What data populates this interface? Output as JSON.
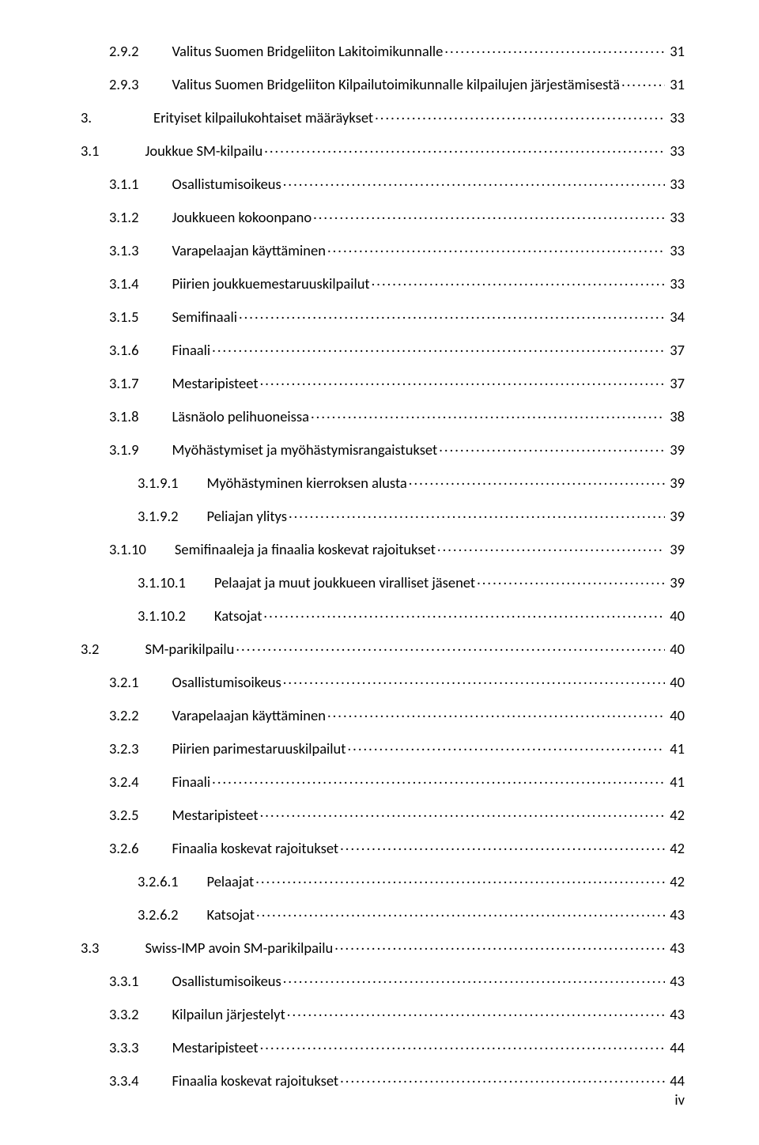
{
  "toc": [
    {
      "indent": 1,
      "num": "2.9.2",
      "gap": "a",
      "title": "Valitus Suomen Bridgeliiton Lakitoimikunnalle",
      "page": "31"
    },
    {
      "indent": 1,
      "num": "2.9.3",
      "gap": "a",
      "title": "Valitus Suomen Bridgeliiton Kilpailutoimikunnalle kilpailujen järjestämisestä",
      "page": "31"
    },
    {
      "indent": 0,
      "num": "3.",
      "gap": "b",
      "title": "Erityiset kilpailukohtaiset määräykset",
      "page": "33"
    },
    {
      "indent": 0,
      "num": "3.1",
      "gap": "c",
      "title": "Joukkue SM-kilpailu",
      "page": "33"
    },
    {
      "indent": 1,
      "num": "3.1.1",
      "gap": "a",
      "title": "Osallistumisoikeus",
      "page": "33"
    },
    {
      "indent": 1,
      "num": "3.1.2",
      "gap": "a",
      "title": "Joukkueen kokoonpano",
      "page": "33"
    },
    {
      "indent": 1,
      "num": "3.1.3",
      "gap": "a",
      "title": "Varapelaajan käyttäminen",
      "page": "33"
    },
    {
      "indent": 1,
      "num": "3.1.4",
      "gap": "a",
      "title": "Piirien joukkuemestaruuskilpailut",
      "page": "33"
    },
    {
      "indent": 1,
      "num": "3.1.5",
      "gap": "a",
      "title": "Semifinaali",
      "page": "34"
    },
    {
      "indent": 1,
      "num": "3.1.6",
      "gap": "a",
      "title": "Finaali",
      "page": "37"
    },
    {
      "indent": 1,
      "num": "3.1.7",
      "gap": "a",
      "title": "Mestaripisteet",
      "page": "37"
    },
    {
      "indent": 1,
      "num": "3.1.8",
      "gap": "a",
      "title": "Läsnäolo pelihuoneissa",
      "page": "38"
    },
    {
      "indent": 1,
      "num": "3.1.9",
      "gap": "a",
      "title": "Myöhästymiset ja myöhästymisrangaistukset",
      "page": "39"
    },
    {
      "indent": 2,
      "num": "3.1.9.1",
      "gap": "d",
      "title": "Myöhästyminen kierroksen alusta",
      "page": "39"
    },
    {
      "indent": 2,
      "num": "3.1.9.2",
      "gap": "d",
      "title": "Peliajan ylitys",
      "page": "39"
    },
    {
      "indent": 1,
      "num": "3.1.10",
      "gap": "d",
      "title": "Semifinaaleja ja finaalia koskevat rajoitukset",
      "page": "39"
    },
    {
      "indent": 2,
      "num": "3.1.10.1",
      "gap": "d",
      "title": "Pelaajat ja muut joukkueen viralliset jäsenet",
      "page": "39"
    },
    {
      "indent": 2,
      "num": "3.1.10.2",
      "gap": "d",
      "title": "Katsojat",
      "page": "40"
    },
    {
      "indent": 0,
      "num": "3.2",
      "gap": "c",
      "title": "SM-parikilpailu",
      "page": "40"
    },
    {
      "indent": 1,
      "num": "3.2.1",
      "gap": "a",
      "title": "Osallistumisoikeus",
      "page": "40"
    },
    {
      "indent": 1,
      "num": "3.2.2",
      "gap": "a",
      "title": "Varapelaajan käyttäminen",
      "page": "40"
    },
    {
      "indent": 1,
      "num": "3.2.3",
      "gap": "a",
      "title": "Piirien parimestaruuskilpailut",
      "page": "41"
    },
    {
      "indent": 1,
      "num": "3.2.4",
      "gap": "a",
      "title": "Finaali",
      "page": "41"
    },
    {
      "indent": 1,
      "num": "3.2.5",
      "gap": "a",
      "title": "Mestaripisteet",
      "page": "42"
    },
    {
      "indent": 1,
      "num": "3.2.6",
      "gap": "a",
      "title": "Finaalia koskevat rajoitukset",
      "page": "42"
    },
    {
      "indent": 2,
      "num": "3.2.6.1",
      "gap": "d",
      "title": "Pelaajat",
      "page": "42"
    },
    {
      "indent": 2,
      "num": "3.2.6.2",
      "gap": "d",
      "title": "Katsojat",
      "page": "43"
    },
    {
      "indent": 0,
      "num": "3.3",
      "gap": "c",
      "title": "Swiss-IMP avoin SM-parikilpailu",
      "page": "43"
    },
    {
      "indent": 1,
      "num": "3.3.1",
      "gap": "a",
      "title": "Osallistumisoikeus",
      "page": "43"
    },
    {
      "indent": 1,
      "num": "3.3.2",
      "gap": "a",
      "title": "Kilpailun järjestelyt",
      "page": "43"
    },
    {
      "indent": 1,
      "num": "3.3.3",
      "gap": "a",
      "title": "Mestaripisteet",
      "page": "44"
    },
    {
      "indent": 1,
      "num": "3.3.4",
      "gap": "a",
      "title": "Finaalia koskevat rajoitukset",
      "page": "44"
    }
  ],
  "footer": "iv"
}
